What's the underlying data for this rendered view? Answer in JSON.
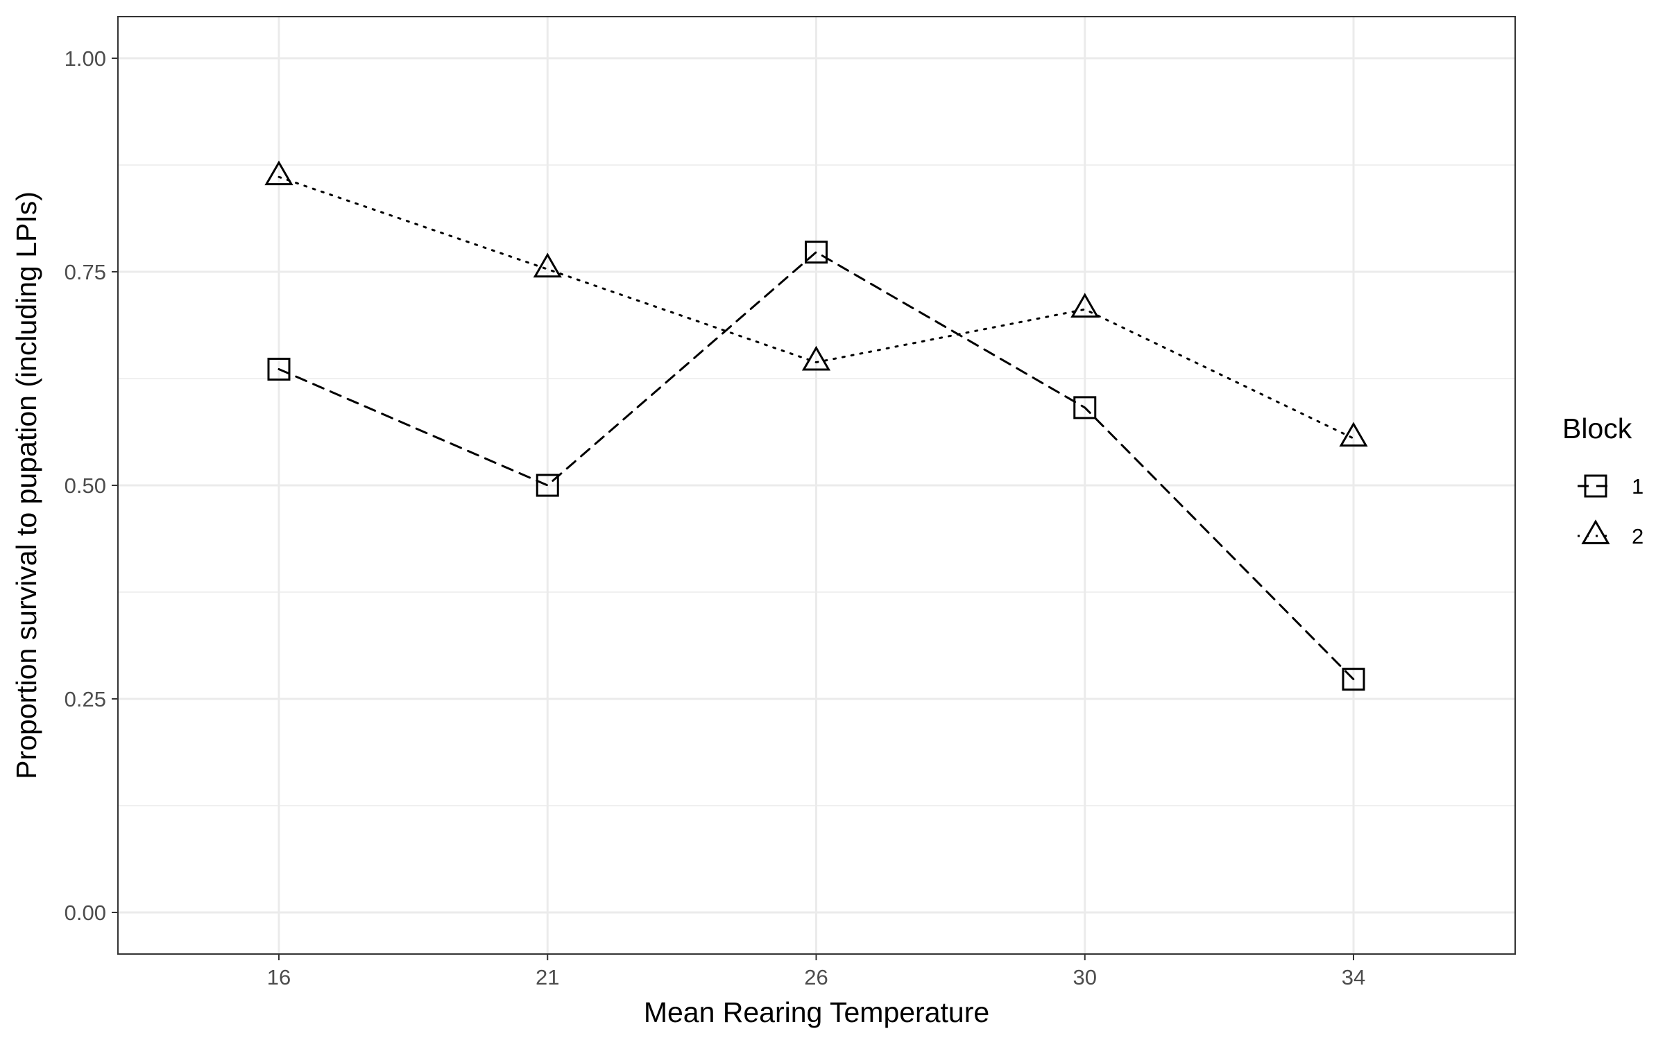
{
  "chart_data": {
    "type": "line",
    "xlabel": "Mean Rearing Temperature",
    "ylabel": "Proportion survival to pupation (including LPIs)",
    "categories": [
      "16",
      "21",
      "26",
      "30",
      "34"
    ],
    "ylim": [
      0,
      1
    ],
    "y_ticks": [
      "0.00",
      "0.25",
      "0.50",
      "0.75",
      "1.00"
    ],
    "grid": true,
    "legend": {
      "title": "Block",
      "position": "right"
    },
    "series": [
      {
        "name": "1",
        "values": [
          0.636,
          0.5,
          0.773,
          0.591,
          0.273
        ],
        "marker": "square",
        "linestyle": "dashed",
        "color": "#000000"
      },
      {
        "name": "2",
        "values": [
          0.861,
          0.753,
          0.644,
          0.706,
          0.555
        ],
        "marker": "triangle",
        "linestyle": "dotted",
        "color": "#000000"
      }
    ]
  }
}
